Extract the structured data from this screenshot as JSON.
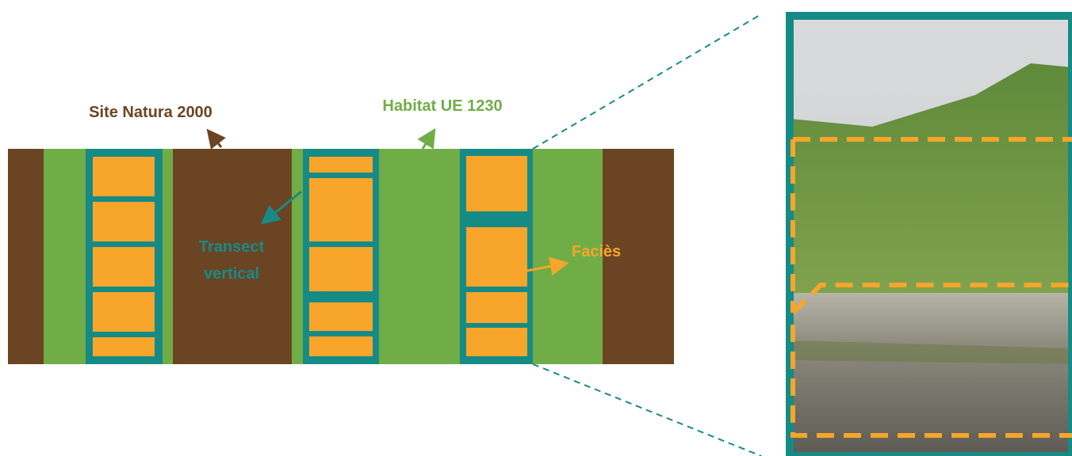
{
  "labels": {
    "site": "Site Natura 2000",
    "habitat": "Habitat UE 1230",
    "transect": [
      "Transect",
      "vertical"
    ],
    "facies": "Faciès"
  }
}
